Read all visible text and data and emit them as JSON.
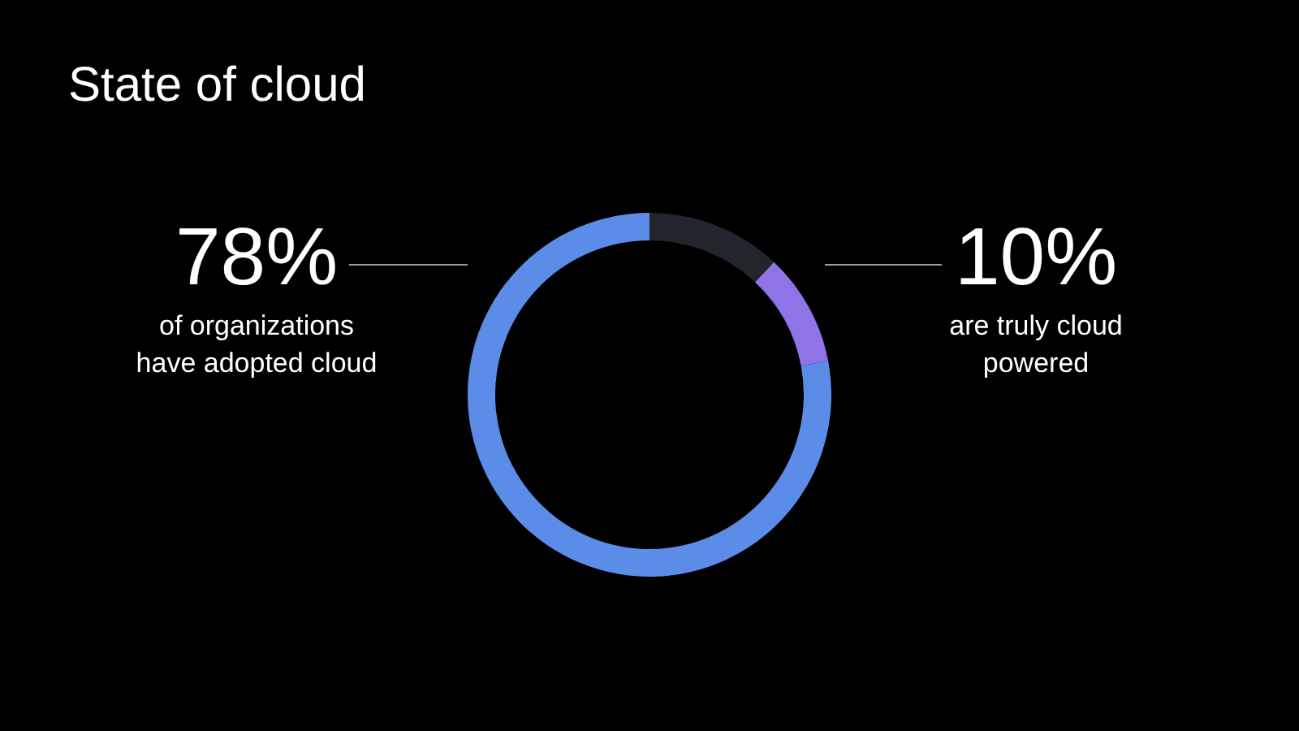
{
  "chart_data": {
    "type": "donut",
    "title": "State of cloud",
    "categories": [
      null,
      null,
      null
    ],
    "values": [
      12,
      10,
      78
    ],
    "colors": [
      "#22262c",
      "#8f74e8",
      "#5b8ce8"
    ],
    "annotations": [
      "78%",
      "of organizations\nhave adopted cloud",
      "10%",
      "are truly cloud\npowered"
    ]
  }
}
